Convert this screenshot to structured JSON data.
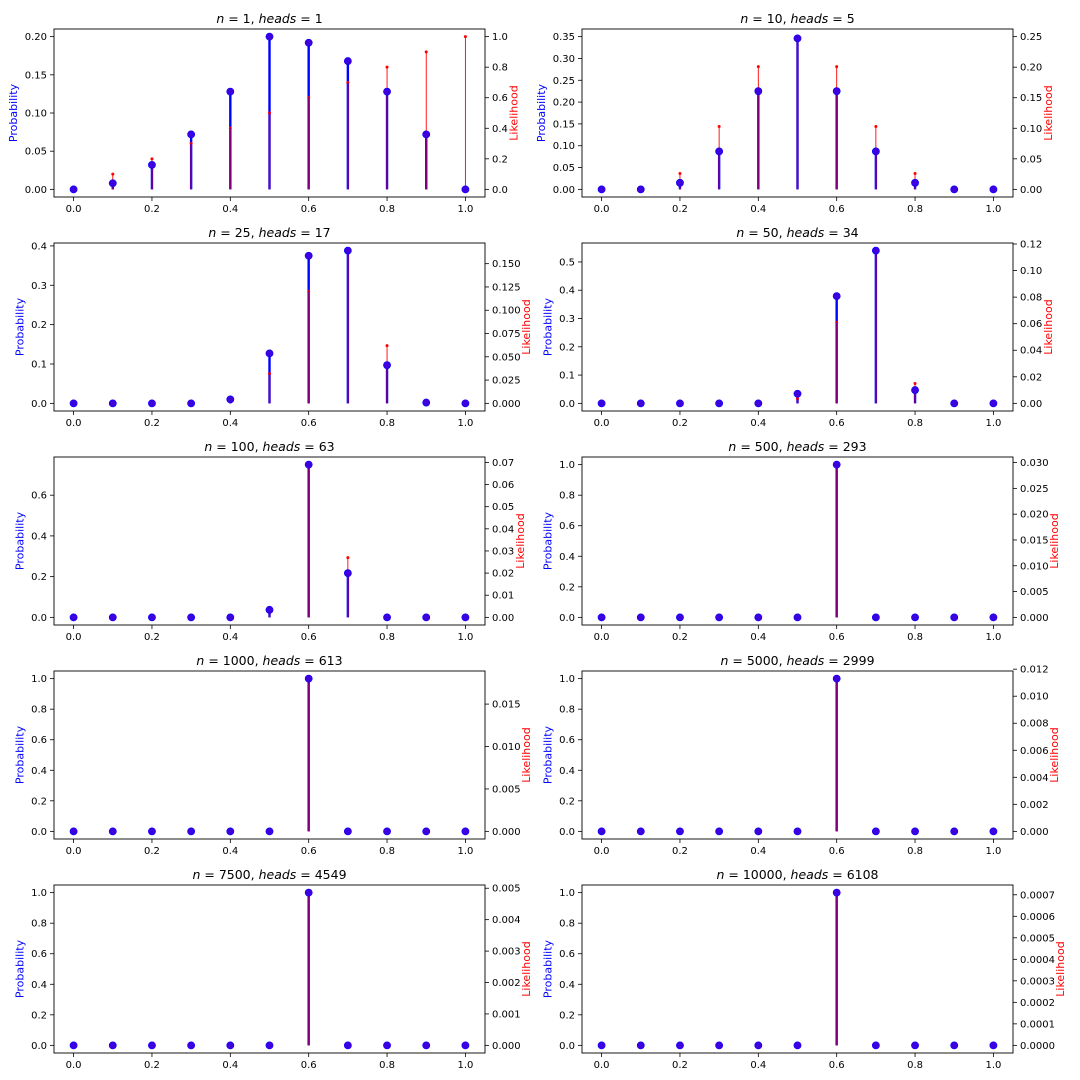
{
  "colors": {
    "probability": "#0000ff",
    "likelihood": "#ff0000",
    "overlap": "#800080",
    "marker_fill": "#3f00e0"
  },
  "chart_data": [
    {
      "type": "stem",
      "title_n": "1",
      "title_heads": "1",
      "ylabel_left": "Probability",
      "ylabel_right": "Likelihood",
      "x": [
        0.0,
        0.1,
        0.2,
        0.3,
        0.4,
        0.5,
        0.6,
        0.7,
        0.8,
        0.9,
        1.0
      ],
      "xticks": [
        "0.0",
        "0.2",
        "0.4",
        "0.6",
        "0.8",
        "1.0"
      ],
      "ylim_left": [
        -0.01,
        0.21
      ],
      "yticks_left": [
        "0.00",
        "0.05",
        "0.10",
        "0.15",
        "0.20"
      ],
      "ylim_right": [
        -0.05,
        1.05
      ],
      "yticks_right": [
        "0.0",
        "0.2",
        "0.4",
        "0.6",
        "0.8",
        "1.0"
      ],
      "series": [
        {
          "name": "Probability",
          "values": [
            0.0,
            0.008,
            0.032,
            0.072,
            0.128,
            0.2,
            0.192,
            0.168,
            0.128,
            0.072,
            0.0
          ]
        },
        {
          "name": "Likelihood",
          "values": [
            0.0,
            0.1,
            0.2,
            0.3,
            0.4,
            0.5,
            0.6,
            0.7,
            0.8,
            0.9,
            1.0
          ]
        }
      ]
    },
    {
      "type": "stem",
      "title_n": "10",
      "title_heads": "5",
      "ylabel_left": "Probability",
      "ylabel_right": "Likelihood",
      "x": [
        0.0,
        0.1,
        0.2,
        0.3,
        0.4,
        0.5,
        0.6,
        0.7,
        0.8,
        0.9,
        1.0
      ],
      "xticks": [
        "0.0",
        "0.2",
        "0.4",
        "0.6",
        "0.8",
        "1.0"
      ],
      "ylim_left": [
        -0.0175,
        0.3675
      ],
      "yticks_left": [
        "0.00",
        "0.05",
        "0.10",
        "0.15",
        "0.20",
        "0.25",
        "0.30",
        "0.35"
      ],
      "ylim_right": [
        -0.0125,
        0.2625
      ],
      "yticks_right": [
        "0.00",
        "0.05",
        "0.10",
        "0.15",
        "0.20",
        "0.25"
      ],
      "series": [
        {
          "name": "Probability",
          "values": [
            0.0,
            0.0,
            0.015,
            0.087,
            0.225,
            0.346,
            0.225,
            0.087,
            0.015,
            0.0,
            0.0
          ]
        },
        {
          "name": "Likelihood",
          "values": [
            0.0,
            0.0015,
            0.026,
            0.103,
            0.201,
            0.246,
            0.201,
            0.103,
            0.026,
            0.0015,
            0.0
          ]
        }
      ]
    },
    {
      "type": "stem",
      "title_n": "25",
      "title_heads": "17",
      "ylabel_left": "Probability",
      "ylabel_right": "Likelihood",
      "x": [
        0.0,
        0.1,
        0.2,
        0.3,
        0.4,
        0.5,
        0.6,
        0.7,
        0.8,
        0.9,
        1.0
      ],
      "xticks": [
        "0.0",
        "0.2",
        "0.4",
        "0.6",
        "0.8",
        "1.0"
      ],
      "ylim_left": [
        -0.0194,
        0.4074
      ],
      "yticks_left": [
        "0.0",
        "0.1",
        "0.2",
        "0.3",
        "0.4"
      ],
      "ylim_right": [
        -0.0082,
        0.1722
      ],
      "yticks_right": [
        "0.000",
        "0.025",
        "0.050",
        "0.075",
        "0.100",
        "0.125",
        "0.150"
      ],
      "series": [
        {
          "name": "Probability",
          "values": [
            0.0,
            0.0,
            0.0,
            0.0,
            0.01,
            0.127,
            0.375,
            0.388,
            0.097,
            0.002,
            0.0
          ]
        },
        {
          "name": "Likelihood",
          "values": [
            0.0,
            0.0,
            0.0,
            0.0,
            0.0043,
            0.032,
            0.12,
            0.165,
            0.062,
            0.0012,
            0.0
          ]
        }
      ]
    },
    {
      "type": "stem",
      "title_n": "50",
      "title_heads": "34",
      "ylabel_left": "Probability",
      "ylabel_right": "Likelihood",
      "x": [
        0.0,
        0.1,
        0.2,
        0.3,
        0.4,
        0.5,
        0.6,
        0.7,
        0.8,
        0.9,
        1.0
      ],
      "xticks": [
        "0.0",
        "0.2",
        "0.4",
        "0.6",
        "0.8",
        "1.0"
      ],
      "ylim_left": [
        -0.027,
        0.567
      ],
      "yticks_left": [
        "0.0",
        "0.1",
        "0.2",
        "0.3",
        "0.4",
        "0.5"
      ],
      "ylim_right": [
        -0.00575,
        0.12075
      ],
      "yticks_right": [
        "0.00",
        "0.02",
        "0.04",
        "0.06",
        "0.08",
        "0.10",
        "0.12"
      ],
      "series": [
        {
          "name": "Probability",
          "values": [
            0.0,
            0.0,
            0.0,
            0.0,
            0.0,
            0.034,
            0.379,
            0.54,
            0.047,
            0.0,
            0.0
          ]
        },
        {
          "name": "Likelihood",
          "values": [
            0.0,
            0.0,
            0.0,
            0.0,
            0.0,
            0.0035,
            0.061,
            0.115,
            0.015,
            0.0,
            0.0
          ]
        }
      ]
    },
    {
      "type": "stem",
      "title_n": "100",
      "title_heads": "63",
      "ylabel_left": "Probability",
      "ylabel_right": "Likelihood",
      "x": [
        0.0,
        0.1,
        0.2,
        0.3,
        0.4,
        0.5,
        0.6,
        0.7,
        0.8,
        0.9,
        1.0
      ],
      "xticks": [
        "0.0",
        "0.2",
        "0.4",
        "0.6",
        "0.8",
        "1.0"
      ],
      "ylim_left": [
        -0.0375,
        0.7875
      ],
      "yticks_left": [
        "0.0",
        "0.2",
        "0.4",
        "0.6"
      ],
      "ylim_right": [
        -0.00345,
        0.07245
      ],
      "yticks_right": [
        "0.00",
        "0.01",
        "0.02",
        "0.03",
        "0.04",
        "0.05",
        "0.06",
        "0.07"
      ],
      "series": [
        {
          "name": "Probability",
          "values": [
            0.0,
            0.0,
            0.0,
            0.0,
            0.0,
            0.037,
            0.75,
            0.217,
            0.0,
            0.0,
            0.0
          ]
        },
        {
          "name": "Likelihood",
          "values": [
            0.0,
            0.0,
            0.0,
            0.0,
            0.0,
            0.0027,
            0.069,
            0.027,
            0.0,
            0.0,
            0.0
          ]
        }
      ]
    },
    {
      "type": "stem",
      "title_n": "500",
      "title_heads": "293",
      "ylabel_left": "Probability",
      "ylabel_right": "Likelihood",
      "x": [
        0.0,
        0.1,
        0.2,
        0.3,
        0.4,
        0.5,
        0.6,
        0.7,
        0.8,
        0.9,
        1.0
      ],
      "xticks": [
        "0.0",
        "0.2",
        "0.4",
        "0.6",
        "0.8",
        "1.0"
      ],
      "ylim_left": [
        -0.05,
        1.05
      ],
      "yticks_left": [
        "0.0",
        "0.2",
        "0.4",
        "0.6",
        "0.8",
        "1.0"
      ],
      "ylim_right": [
        -0.00148,
        0.03108
      ],
      "yticks_right": [
        "0.000",
        "0.005",
        "0.010",
        "0.015",
        "0.020",
        "0.025",
        "0.030"
      ],
      "series": [
        {
          "name": "Probability",
          "values": [
            0.0,
            0.0,
            0.0,
            0.0,
            0.0,
            0.0,
            1.0,
            0.0,
            0.0,
            0.0,
            0.0
          ]
        },
        {
          "name": "Likelihood",
          "values": [
            0.0,
            0.0,
            0.0,
            0.0,
            0.0,
            0.0,
            0.0296,
            0.0,
            0.0,
            0.0,
            0.0
          ]
        }
      ]
    },
    {
      "type": "stem",
      "title_n": "1000",
      "title_heads": "613",
      "ylabel_left": "Probability",
      "ylabel_right": "Likelihood",
      "x": [
        0.0,
        0.1,
        0.2,
        0.3,
        0.4,
        0.5,
        0.6,
        0.7,
        0.8,
        0.9,
        1.0
      ],
      "xticks": [
        "0.0",
        "0.2",
        "0.4",
        "0.6",
        "0.8",
        "1.0"
      ],
      "ylim_left": [
        -0.05,
        1.05
      ],
      "yticks_left": [
        "0.0",
        "0.2",
        "0.4",
        "0.6",
        "0.8",
        "1.0"
      ],
      "ylim_right": [
        -0.0009,
        0.0189
      ],
      "yticks_right": [
        "0.000",
        "0.005",
        "0.010",
        "0.015"
      ],
      "series": [
        {
          "name": "Probability",
          "values": [
            0.0,
            0.0,
            0.0,
            0.0,
            0.0,
            0.0,
            1.0,
            0.0,
            0.0,
            0.0,
            0.0
          ]
        },
        {
          "name": "Likelihood",
          "values": [
            0.0,
            0.0,
            0.0,
            0.0,
            0.0,
            0.0,
            0.018,
            0.0,
            0.0,
            0.0,
            0.0
          ]
        }
      ]
    },
    {
      "type": "stem",
      "title_n": "5000",
      "title_heads": "2999",
      "ylabel_left": "Probability",
      "ylabel_right": "Likelihood",
      "x": [
        0.0,
        0.1,
        0.2,
        0.3,
        0.4,
        0.5,
        0.6,
        0.7,
        0.8,
        0.9,
        1.0
      ],
      "xticks": [
        "0.0",
        "0.2",
        "0.4",
        "0.6",
        "0.8",
        "1.0"
      ],
      "ylim_left": [
        -0.05,
        1.05
      ],
      "yticks_left": [
        "0.0",
        "0.2",
        "0.4",
        "0.6",
        "0.8",
        "1.0"
      ],
      "ylim_right": [
        -0.000565,
        0.011865
      ],
      "yticks_right": [
        "0.000",
        "0.002",
        "0.004",
        "0.006",
        "0.008",
        "0.010",
        "0.012"
      ],
      "series": [
        {
          "name": "Probability",
          "values": [
            0.0,
            0.0,
            0.0,
            0.0,
            0.0,
            0.0,
            1.0,
            0.0,
            0.0,
            0.0,
            0.0
          ]
        },
        {
          "name": "Likelihood",
          "values": [
            0.0,
            0.0,
            0.0,
            0.0,
            0.0,
            0.0,
            0.0113,
            0.0,
            0.0,
            0.0,
            0.0
          ]
        }
      ]
    },
    {
      "type": "stem",
      "title_n": "7500",
      "title_heads": "4549",
      "ylabel_left": "Probability",
      "ylabel_right": "Likelihood",
      "x": [
        0.0,
        0.1,
        0.2,
        0.3,
        0.4,
        0.5,
        0.6,
        0.7,
        0.8,
        0.9,
        1.0
      ],
      "xticks": [
        "0.0",
        "0.2",
        "0.4",
        "0.6",
        "0.8",
        "1.0"
      ],
      "ylim_left": [
        -0.05,
        1.05
      ],
      "yticks_left": [
        "0.0",
        "0.2",
        "0.4",
        "0.6",
        "0.8",
        "1.0"
      ],
      "ylim_right": [
        -0.000243,
        0.005103
      ],
      "yticks_right": [
        "0.000",
        "0.001",
        "0.002",
        "0.003",
        "0.004",
        "0.005"
      ],
      "series": [
        {
          "name": "Probability",
          "values": [
            0.0,
            0.0,
            0.0,
            0.0,
            0.0,
            0.0,
            1.0,
            0.0,
            0.0,
            0.0,
            0.0
          ]
        },
        {
          "name": "Likelihood",
          "values": [
            0.0,
            0.0,
            0.0,
            0.0,
            0.0,
            0.0,
            0.00486,
            0.0,
            0.0,
            0.0,
            0.0
          ]
        }
      ]
    },
    {
      "type": "stem",
      "title_n": "10000",
      "title_heads": "6108",
      "ylabel_left": "Probability",
      "ylabel_right": "Likelihood",
      "x": [
        0.0,
        0.1,
        0.2,
        0.3,
        0.4,
        0.5,
        0.6,
        0.7,
        0.8,
        0.9,
        1.0
      ],
      "xticks": [
        "0.0",
        "0.2",
        "0.4",
        "0.6",
        "0.8",
        "1.0"
      ],
      "ylim_left": [
        -0.05,
        1.05
      ],
      "yticks_left": [
        "0.0",
        "0.2",
        "0.4",
        "0.6",
        "0.8",
        "1.0"
      ],
      "ylim_right": [
        -3.55e-05,
        0.0007455
      ],
      "yticks_right": [
        "0.0000",
        "0.0001",
        "0.0002",
        "0.0003",
        "0.0004",
        "0.0005",
        "0.0006",
        "0.0007"
      ],
      "series": [
        {
          "name": "Probability",
          "values": [
            0.0,
            0.0,
            0.0,
            0.0,
            0.0,
            0.0,
            1.0,
            0.0,
            0.0,
            0.0,
            0.0
          ]
        },
        {
          "name": "Likelihood",
          "values": [
            0.0,
            0.0,
            0.0,
            0.0,
            0.0,
            0.0,
            0.00071,
            0.0,
            0.0,
            0.0,
            0.0
          ]
        }
      ]
    }
  ]
}
